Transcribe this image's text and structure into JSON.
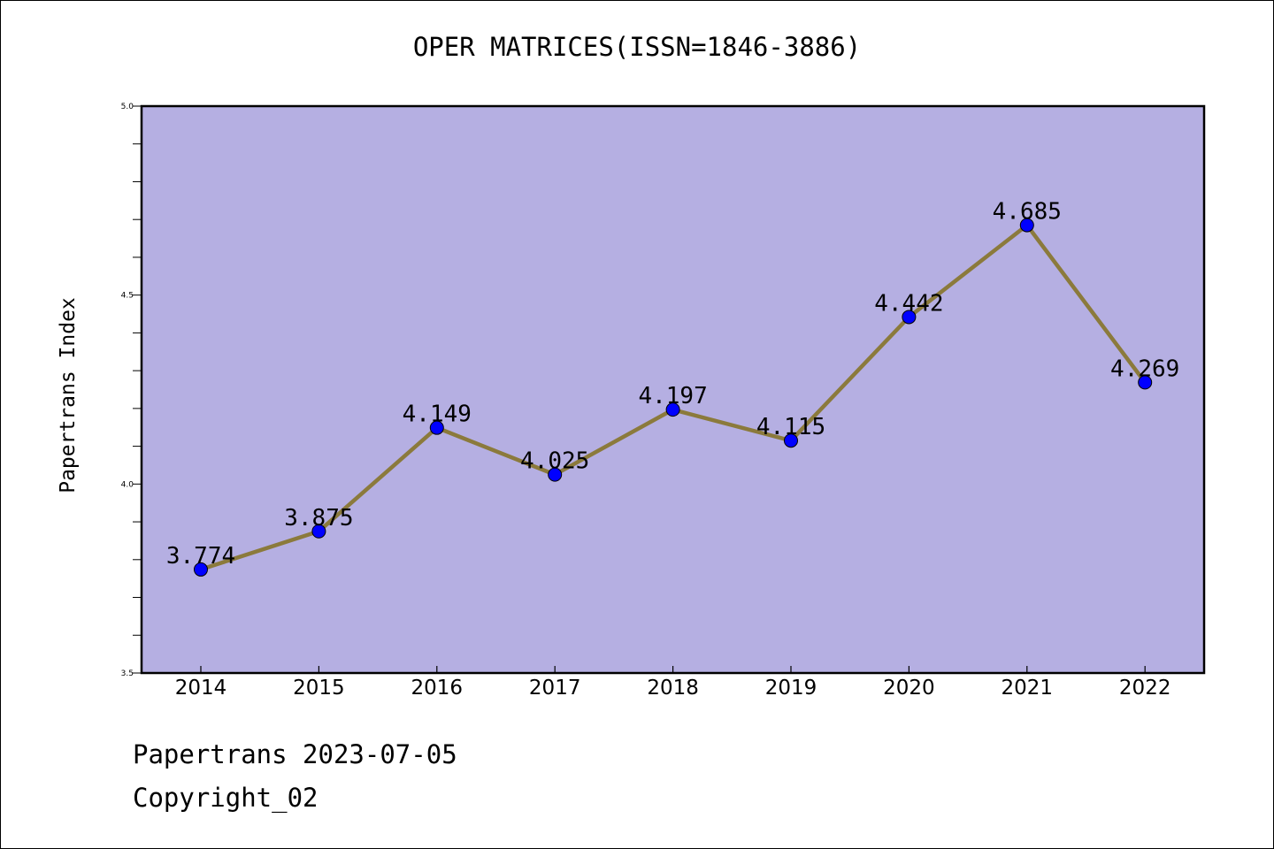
{
  "chart_data": {
    "type": "line",
    "title": "OPER MATRICES(ISSN=1846-3886)",
    "xlabel": "",
    "ylabel": "Papertrans Index",
    "categories": [
      "2014",
      "2015",
      "2016",
      "2017",
      "2018",
      "2019",
      "2020",
      "2021",
      "2022"
    ],
    "series": [
      {
        "values": [
          3.774,
          3.875,
          4.149,
          4.025,
          4.197,
          4.115,
          4.442,
          4.685,
          4.269
        ],
        "data_labels": [
          "3.774",
          "3.875",
          "4.149",
          "4.025",
          "4.197",
          "4.115",
          "4.442",
          "4.685",
          "4.269"
        ]
      }
    ],
    "ylim": [
      3.5,
      5.0
    ],
    "yticks": [
      "3.5",
      "4.0",
      "4.5",
      "5.0"
    ],
    "grid": false,
    "legend": "none",
    "colors": {
      "plot_background": "#b5afe2",
      "line": "#8b7a3c",
      "marker": "#0000ff",
      "axes": "#000000"
    }
  },
  "footer": {
    "date_text": "Papertrans 2023-07-05",
    "copyright_text": "Copyright_02"
  }
}
